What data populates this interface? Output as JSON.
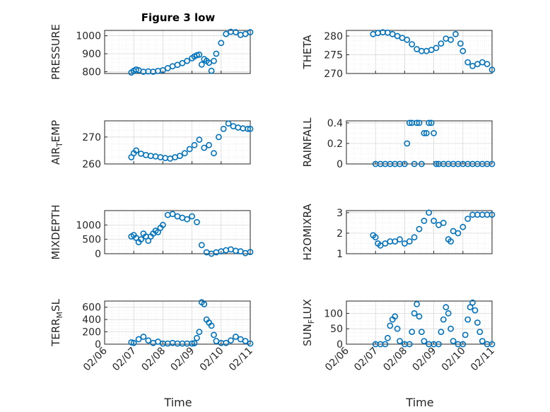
{
  "figure": {
    "title": "Figure 3 low",
    "xlabel": "Time"
  },
  "xticks": [
    "02/06",
    "02/07",
    "02/08",
    "02/09",
    "02/10",
    "02/11"
  ],
  "colors": {
    "marker": "#0072BD",
    "axes": "#262626",
    "grid": "#d4d4d4"
  },
  "chart_data": [
    {
      "type": "scatter",
      "id": "pressure",
      "ylabel": "PRESSURE",
      "ylim": [
        790,
        1030
      ],
      "yticks": [
        800,
        900,
        1000
      ],
      "grid": true,
      "x": [
        "02/06 22:00",
        "02/07 00:00",
        "02/07 02:00",
        "02/07 04:00",
        "02/07 08:00",
        "02/07 12:00",
        "02/07 16:00",
        "02/07 20:00",
        "02/08 00:00",
        "02/08 04:00",
        "02/08 08:00",
        "02/08 12:00",
        "02/08 16:00",
        "02/08 20:00",
        "02/09 00:00",
        "02/09 02:00",
        "02/09 04:00",
        "02/09 06:00",
        "02/09 08:00",
        "02/09 10:00",
        "02/09 12:00",
        "02/09 14:00",
        "02/09 16:00",
        "02/09 18:00",
        "02/09 20:00",
        "02/10 00:00",
        "02/10 04:00",
        "02/10 08:00",
        "02/10 12:00",
        "02/10 16:00",
        "02/10 20:00",
        "02/11 00:00"
      ],
      "y": [
        795,
        805,
        812,
        808,
        800,
        802,
        800,
        804,
        808,
        820,
        830,
        838,
        848,
        860,
        875,
        885,
        892,
        895,
        840,
        870,
        860,
        850,
        805,
        860,
        900,
        960,
        1010,
        1022,
        1020,
        1005,
        1010,
        1020
      ]
    },
    {
      "type": "scatter",
      "id": "theta",
      "ylabel": "THETA",
      "ylim": [
        270,
        281.5
      ],
      "yticks": [
        270,
        275,
        280
      ],
      "grid": true,
      "x": [
        "02/06 22:00",
        "02/07 02:00",
        "02/07 06:00",
        "02/07 10:00",
        "02/07 14:00",
        "02/07 18:00",
        "02/07 22:00",
        "02/08 02:00",
        "02/08 06:00",
        "02/08 10:00",
        "02/08 14:00",
        "02/08 18:00",
        "02/08 22:00",
        "02/09 02:00",
        "02/09 06:00",
        "02/09 10:00",
        "02/09 14:00",
        "02/09 18:00",
        "02/09 22:00",
        "02/10 00:00",
        "02/10 04:00",
        "02/10 08:00",
        "02/10 12:00",
        "02/10 16:00",
        "02/10 20:00",
        "02/11 00:00"
      ],
      "y": [
        280.5,
        280.8,
        281,
        280.9,
        280.5,
        280,
        279.5,
        279,
        277.8,
        276.5,
        276,
        276,
        276.3,
        276.8,
        278,
        279.3,
        279,
        280.5,
        278,
        276,
        273,
        272,
        272.5,
        273,
        272.5,
        271
      ]
    },
    {
      "type": "scatter",
      "id": "airtemp",
      "ylabel": "AIR_TEMP",
      "ylim": [
        260,
        276
      ],
      "yticks": [
        260,
        270
      ],
      "grid": true,
      "x": [
        "02/06 22:00",
        "02/07 00:00",
        "02/07 02:00",
        "02/07 06:00",
        "02/07 10:00",
        "02/07 14:00",
        "02/07 18:00",
        "02/07 22:00",
        "02/08 02:00",
        "02/08 06:00",
        "02/08 10:00",
        "02/08 14:00",
        "02/08 18:00",
        "02/08 22:00",
        "02/09 02:00",
        "02/09 06:00",
        "02/09 10:00",
        "02/09 14:00",
        "02/09 18:00",
        "02/09 22:00",
        "02/10 02:00",
        "02/10 06:00",
        "02/10 10:00",
        "02/10 14:00",
        "02/10 18:00",
        "02/10 22:00",
        "02/11 00:00"
      ],
      "y": [
        262.5,
        264,
        265,
        263.8,
        263.3,
        263,
        262.8,
        262.5,
        262.2,
        262,
        262.5,
        263,
        264,
        265.5,
        267,
        269,
        266,
        267,
        264,
        270,
        273,
        275,
        274,
        273.5,
        273.2,
        273,
        273
      ]
    },
    {
      "type": "scatter",
      "id": "rainfall",
      "ylabel": "RAINFALL",
      "ylim": [
        0,
        0.42
      ],
      "yticks": [
        0,
        0.2,
        0.4
      ],
      "grid": true,
      "x": [
        "02/07 00:00",
        "02/07 04:00",
        "02/07 08:00",
        "02/07 12:00",
        "02/07 16:00",
        "02/07 20:00",
        "02/08 00:00",
        "02/08 02:00",
        "02/08 04:00",
        "02/08 06:00",
        "02/08 08:00",
        "02/08 10:00",
        "02/08 12:00",
        "02/08 14:00",
        "02/08 16:00",
        "02/08 18:00",
        "02/08 20:00",
        "02/08 22:00",
        "02/09 00:00",
        "02/09 02:00",
        "02/09 04:00",
        "02/09 08:00",
        "02/09 12:00",
        "02/09 16:00",
        "02/09 20:00",
        "02/10 00:00",
        "02/10 04:00",
        "02/10 08:00",
        "02/10 12:00",
        "02/10 16:00",
        "02/10 20:00",
        "02/11 00:00"
      ],
      "y": [
        0,
        0,
        0,
        0,
        0,
        0,
        0,
        0.2,
        0.4,
        0.4,
        0,
        0.4,
        0.4,
        0,
        0.3,
        0.3,
        0.4,
        0.4,
        0.3,
        0,
        0,
        0,
        0,
        0,
        0,
        0,
        0,
        0,
        0,
        0,
        0,
        0
      ]
    },
    {
      "type": "scatter",
      "id": "mixdepth",
      "ylabel": "MIXDEPTH",
      "ylim": [
        0,
        1500
      ],
      "yticks": [
        0,
        500,
        1000
      ],
      "grid": true,
      "x": [
        "02/06 22:00",
        "02/07 00:00",
        "02/07 02:00",
        "02/07 04:00",
        "02/07 06:00",
        "02/07 08:00",
        "02/07 10:00",
        "02/07 12:00",
        "02/07 14:00",
        "02/07 16:00",
        "02/07 18:00",
        "02/07 20:00",
        "02/07 22:00",
        "02/08 00:00",
        "02/08 04:00",
        "02/08 08:00",
        "02/08 12:00",
        "02/08 16:00",
        "02/08 20:00",
        "02/09 00:00",
        "02/09 04:00",
        "02/09 08:00",
        "02/09 12:00",
        "02/09 16:00",
        "02/09 20:00",
        "02/10 00:00",
        "02/10 04:00",
        "02/10 08:00",
        "02/10 12:00",
        "02/10 16:00",
        "02/10 20:00",
        "02/11 00:00"
      ],
      "y": [
        600,
        650,
        550,
        400,
        500,
        700,
        600,
        450,
        600,
        700,
        800,
        750,
        900,
        1000,
        1350,
        1380,
        1300,
        1250,
        1200,
        1300,
        1100,
        300,
        50,
        0,
        50,
        80,
        120,
        150,
        100,
        80,
        20,
        60
      ]
    },
    {
      "type": "scatter",
      "id": "h2omixra",
      "ylabel": "H2OMIXRA",
      "ylim": [
        1,
        3.1
      ],
      "yticks": [
        1,
        2,
        3
      ],
      "grid": true,
      "x": [
        "02/06 22:00",
        "02/07 00:00",
        "02/07 02:00",
        "02/07 04:00",
        "02/07 08:00",
        "02/07 12:00",
        "02/07 16:00",
        "02/07 20:00",
        "02/08 00:00",
        "02/08 04:00",
        "02/08 08:00",
        "02/08 12:00",
        "02/08 16:00",
        "02/08 20:00",
        "02/09 00:00",
        "02/09 04:00",
        "02/09 08:00",
        "02/09 12:00",
        "02/09 14:00",
        "02/09 16:00",
        "02/09 20:00",
        "02/10 00:00",
        "02/10 04:00",
        "02/10 08:00",
        "02/10 12:00",
        "02/10 16:00",
        "02/10 20:00",
        "02/11 00:00"
      ],
      "y": [
        1.9,
        1.8,
        1.5,
        1.4,
        1.5,
        1.6,
        1.6,
        1.7,
        1.5,
        1.6,
        1.8,
        2.2,
        2.6,
        3.0,
        2.6,
        2.4,
        2.5,
        1.7,
        1.6,
        2.1,
        2.0,
        2.3,
        2.7,
        2.9,
        2.9,
        2.9,
        2.9,
        2.9
      ]
    },
    {
      "type": "scatter",
      "id": "terrmsl",
      "ylabel": "TERR_MSL",
      "ylim": [
        0,
        700
      ],
      "yticks": [
        0,
        200,
        400,
        600
      ],
      "grid": true,
      "x": [
        "02/06 22:00",
        "02/07 00:00",
        "02/07 04:00",
        "02/07 08:00",
        "02/07 12:00",
        "02/07 16:00",
        "02/07 20:00",
        "02/08 00:00",
        "02/08 04:00",
        "02/08 08:00",
        "02/08 12:00",
        "02/08 16:00",
        "02/08 20:00",
        "02/09 00:00",
        "02/09 02:00",
        "02/09 04:00",
        "02/09 06:00",
        "02/09 08:00",
        "02/09 10:00",
        "02/09 12:00",
        "02/09 14:00",
        "02/09 16:00",
        "02/09 18:00",
        "02/09 20:00",
        "02/10 00:00",
        "02/10 04:00",
        "02/10 08:00",
        "02/10 12:00",
        "02/10 16:00",
        "02/10 20:00",
        "02/11 00:00"
      ],
      "y": [
        30,
        20,
        80,
        120,
        60,
        20,
        40,
        10,
        10,
        20,
        10,
        10,
        10,
        10,
        15,
        100,
        200,
        680,
        650,
        400,
        350,
        300,
        150,
        50,
        20,
        20,
        60,
        120,
        80,
        50,
        10
      ]
    },
    {
      "type": "scatter",
      "id": "sunflux",
      "ylabel": "SUN_FLUX",
      "ylim": [
        0,
        140
      ],
      "yticks": [
        0,
        50,
        100
      ],
      "grid": true,
      "x": [
        "02/07 00:00",
        "02/07 04:00",
        "02/07 08:00",
        "02/07 10:00",
        "02/07 12:00",
        "02/07 14:00",
        "02/07 16:00",
        "02/07 18:00",
        "02/07 20:00",
        "02/08 00:00",
        "02/08 04:00",
        "02/08 06:00",
        "02/08 08:00",
        "02/08 10:00",
        "02/08 12:00",
        "02/08 14:00",
        "02/08 16:00",
        "02/08 20:00",
        "02/09 00:00",
        "02/09 04:00",
        "02/09 06:00",
        "02/09 08:00",
        "02/09 10:00",
        "02/09 12:00",
        "02/09 14:00",
        "02/09 16:00",
        "02/09 20:00",
        "02/10 00:00",
        "02/10 02:00",
        "02/10 04:00",
        "02/10 06:00",
        "02/10 08:00",
        "02/10 10:00",
        "02/10 12:00",
        "02/10 14:00",
        "02/10 16:00",
        "02/10 20:00",
        "02/11 00:00"
      ],
      "y": [
        0,
        0,
        0,
        20,
        60,
        80,
        90,
        50,
        10,
        0,
        0,
        40,
        100,
        130,
        90,
        40,
        10,
        0,
        0,
        0,
        40,
        80,
        120,
        100,
        50,
        10,
        0,
        0,
        30,
        80,
        120,
        135,
        110,
        70,
        40,
        10,
        0,
        0
      ]
    }
  ]
}
